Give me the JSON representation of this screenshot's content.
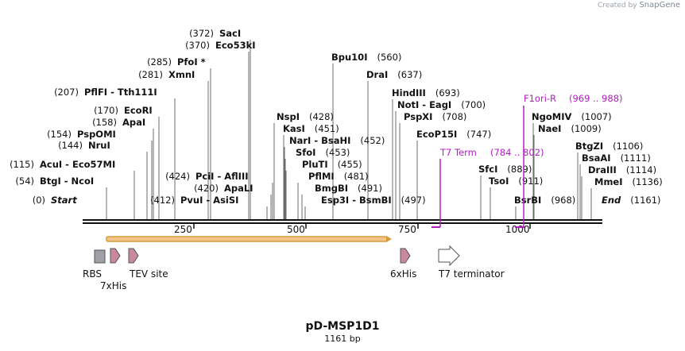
{
  "watermark": {
    "prefix": "Created by",
    "brand": "SnapGene"
  },
  "plasmid": {
    "name": "pD-MSP1D1",
    "length": "1161 bp"
  },
  "sites": [
    {
      "pos": "(0)",
      "names": "Start"
    },
    {
      "pos": "(54)",
      "names": "BtgI - NcoI"
    },
    {
      "pos": "(115)",
      "names": "AcuI - Eco57MI"
    },
    {
      "pos": "(144)",
      "names": "NruI"
    },
    {
      "pos": "(154)",
      "names": "PspOMI"
    },
    {
      "pos": "(158)",
      "names": "ApaI"
    },
    {
      "pos": "(170)",
      "names": "EcoRI"
    },
    {
      "pos": "(207)",
      "names": "PflFI - Tth111I"
    },
    {
      "pos": "(281)",
      "names": "XmnI"
    },
    {
      "pos": "(285)",
      "names": "PfoI *"
    },
    {
      "pos": "(370)",
      "names": "Eco53kI"
    },
    {
      "pos": "(372)",
      "names": "SacI"
    },
    {
      "pos": "(412)",
      "names": "PvuI - AsiSI"
    },
    {
      "pos": "(420)",
      "names": "ApaLI"
    },
    {
      "pos": "(424)",
      "names": "PciI - AflIII"
    },
    {
      "pos": "(428)",
      "names": "NspI"
    },
    {
      "pos": "(451)",
      "names": "KasI"
    },
    {
      "pos": "(452)",
      "names": "NarI - BsaHI"
    },
    {
      "pos": "(453)",
      "names": "SfoI"
    },
    {
      "pos": "(455)",
      "names": "PluTI"
    },
    {
      "pos": "(481)",
      "names": "PflMI"
    },
    {
      "pos": "(491)",
      "names": "BmgBI"
    },
    {
      "pos": "(497)",
      "names": "Esp3I - BsmBI"
    },
    {
      "pos": "(560)",
      "names": "Bpu10I"
    },
    {
      "pos": "(637)",
      "names": "DraI"
    },
    {
      "pos": "(693)",
      "names": "HindIII"
    },
    {
      "pos": "(700)",
      "names": "NotI - EagI"
    },
    {
      "pos": "(708)",
      "names": "PspXI"
    },
    {
      "pos": "(747)",
      "names": "EcoP15I"
    },
    {
      "pos": "(889)",
      "names": "SfcI"
    },
    {
      "pos": "(911)",
      "names": "TsoI"
    },
    {
      "pos": "(968)",
      "names": "BsrBI"
    },
    {
      "pos": "(1007)",
      "names": "NgoMIV"
    },
    {
      "pos": "(1009)",
      "names": "NaeI"
    },
    {
      "pos": "(1106)",
      "names": "BtgZI"
    },
    {
      "pos": "(1111)",
      "names": "BsaAI"
    },
    {
      "pos": "(1114)",
      "names": "DraIII"
    },
    {
      "pos": "(1136)",
      "names": "MmeI"
    },
    {
      "pos": "(1161)",
      "names": "End"
    }
  ],
  "primers": [
    {
      "name": "T7 Term",
      "range": "(784 .. 802)"
    },
    {
      "name": "F1ori-R",
      "range": "(969 .. 988)"
    }
  ],
  "ruler": {
    "ticks": [
      "250",
      "500",
      "750",
      "1000"
    ]
  },
  "features": [
    {
      "name": "RBS"
    },
    {
      "name": "7xHis"
    },
    {
      "name": "TEV site"
    },
    {
      "name": "6xHis"
    },
    {
      "name": "T7 terminator"
    }
  ],
  "colors": {
    "backbone": "#111111",
    "cds_fill": "#f2c48a",
    "cds_outline": "#d49a3c",
    "tag_fill": "#c8899f",
    "rbs_fill": "#a0a0a8",
    "primer": "#b020c0"
  }
}
